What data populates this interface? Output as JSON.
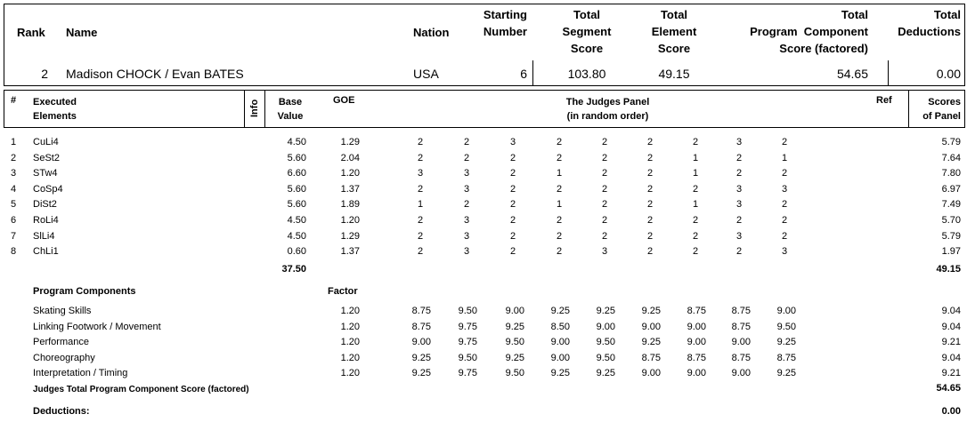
{
  "summary": {
    "headers": {
      "rank": "Rank",
      "name": "Name",
      "nation": "Nation",
      "starting_number": [
        "Starting",
        "Number"
      ],
      "tss": [
        "Total",
        "Segment",
        "Score"
      ],
      "tes": [
        "Total",
        "Element",
        "Score"
      ],
      "pcs": [
        "Total",
        "Program  Component",
        "Score (factored)"
      ],
      "ded": [
        "Total",
        "Deductions"
      ]
    },
    "row": {
      "rank": "2",
      "name": "Madison CHOCK / Evan BATES",
      "nation": "USA",
      "starting_number": "6",
      "tss": "103.80",
      "tes": "49.15",
      "pcs": "54.65",
      "ded": "0.00"
    }
  },
  "elements_header": {
    "num": "#",
    "executed": [
      "Executed",
      "Elements"
    ],
    "info": "Info",
    "base": [
      "Base",
      "Value"
    ],
    "goe": "GOE",
    "judges": [
      "The Judges Panel",
      "(in random order)"
    ],
    "ref": "Ref",
    "scores": [
      "Scores",
      "of Panel"
    ]
  },
  "elements": [
    {
      "num": "1",
      "name": "CuLi4",
      "base": "4.50",
      "goe": "1.29",
      "judges": [
        "2",
        "2",
        "3",
        "2",
        "2",
        "2",
        "2",
        "3",
        "2"
      ],
      "score": "5.79"
    },
    {
      "num": "2",
      "name": "SeSt2",
      "base": "5.60",
      "goe": "2.04",
      "judges": [
        "2",
        "2",
        "2",
        "2",
        "2",
        "2",
        "1",
        "2",
        "1"
      ],
      "score": "7.64"
    },
    {
      "num": "3",
      "name": "STw4",
      "base": "6.60",
      "goe": "1.20",
      "judges": [
        "3",
        "3",
        "2",
        "1",
        "2",
        "2",
        "1",
        "2",
        "2"
      ],
      "score": "7.80"
    },
    {
      "num": "4",
      "name": "CoSp4",
      "base": "5.60",
      "goe": "1.37",
      "judges": [
        "2",
        "3",
        "2",
        "2",
        "2",
        "2",
        "2",
        "3",
        "3"
      ],
      "score": "6.97"
    },
    {
      "num": "5",
      "name": "DiSt2",
      "base": "5.60",
      "goe": "1.89",
      "judges": [
        "1",
        "2",
        "2",
        "1",
        "2",
        "2",
        "1",
        "3",
        "2"
      ],
      "score": "7.49"
    },
    {
      "num": "6",
      "name": "RoLi4",
      "base": "4.50",
      "goe": "1.20",
      "judges": [
        "2",
        "3",
        "2",
        "2",
        "2",
        "2",
        "2",
        "2",
        "2"
      ],
      "score": "5.70"
    },
    {
      "num": "7",
      "name": "SlLi4",
      "base": "4.50",
      "goe": "1.29",
      "judges": [
        "2",
        "3",
        "2",
        "2",
        "2",
        "2",
        "2",
        "3",
        "2"
      ],
      "score": "5.79"
    },
    {
      "num": "8",
      "name": "ChLi1",
      "base": "0.60",
      "goe": "1.37",
      "judges": [
        "2",
        "3",
        "2",
        "2",
        "3",
        "2",
        "2",
        "2",
        "3"
      ],
      "score": "1.97"
    }
  ],
  "elements_total": {
    "base": "37.50",
    "score": "49.15"
  },
  "pc_header": {
    "title": "Program Components",
    "factor": "Factor"
  },
  "components": [
    {
      "name": "Skating Skills",
      "factor": "1.20",
      "judges": [
        "8.75",
        "9.50",
        "9.00",
        "9.25",
        "9.25",
        "9.25",
        "8.75",
        "8.75",
        "9.00"
      ],
      "score": "9.04"
    },
    {
      "name": "Linking Footwork / Movement",
      "factor": "1.20",
      "judges": [
        "8.75",
        "9.75",
        "9.25",
        "8.50",
        "9.00",
        "9.00",
        "9.00",
        "8.75",
        "9.50"
      ],
      "score": "9.04"
    },
    {
      "name": "Performance",
      "factor": "1.20",
      "judges": [
        "9.00",
        "9.75",
        "9.50",
        "9.00",
        "9.50",
        "9.25",
        "9.00",
        "9.00",
        "9.25"
      ],
      "score": "9.21"
    },
    {
      "name": "Choreography",
      "factor": "1.20",
      "judges": [
        "9.25",
        "9.50",
        "9.25",
        "9.00",
        "9.50",
        "8.75",
        "8.75",
        "8.75",
        "8.75"
      ],
      "score": "9.04"
    },
    {
      "name": "Interpretation / Timing",
      "factor": "1.20",
      "judges": [
        "9.25",
        "9.75",
        "9.50",
        "9.25",
        "9.25",
        "9.00",
        "9.00",
        "9.00",
        "9.25"
      ],
      "score": "9.21"
    }
  ],
  "pc_total": {
    "label": "Judges Total Program Component Score (factored)",
    "score": "54.65"
  },
  "deductions": {
    "label": "Deductions:",
    "score": "0.00"
  }
}
